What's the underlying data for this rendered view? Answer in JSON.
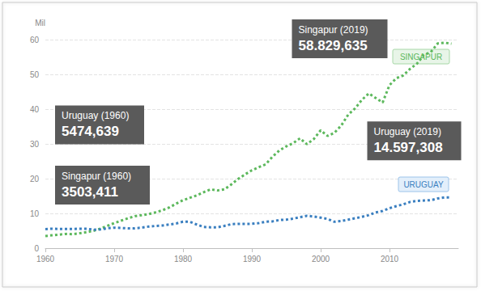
{
  "chart_data": {
    "type": "line",
    "y_label": "Mil",
    "x": [
      1960,
      1961,
      1962,
      1963,
      1964,
      1965,
      1966,
      1967,
      1968,
      1969,
      1970,
      1971,
      1972,
      1973,
      1974,
      1975,
      1976,
      1977,
      1978,
      1979,
      1980,
      1981,
      1982,
      1983,
      1984,
      1985,
      1986,
      1987,
      1988,
      1989,
      1990,
      1991,
      1992,
      1993,
      1994,
      1995,
      1996,
      1997,
      1998,
      1999,
      2000,
      2001,
      2002,
      2003,
      2004,
      2005,
      2006,
      2007,
      2008,
      2009,
      2010,
      2011,
      2012,
      2013,
      2014,
      2015,
      2016,
      2017,
      2018,
      2019
    ],
    "series": [
      {
        "name": "SINGAPUR",
        "color": "#5cb85c",
        "values": [
          3.503411,
          3.7,
          3.9,
          4.1,
          4.0,
          4.3,
          4.6,
          5.0,
          5.6,
          6.4,
          7.2,
          7.9,
          8.6,
          9.2,
          9.5,
          9.8,
          10.3,
          10.9,
          11.7,
          12.8,
          13.8,
          14.5,
          15.2,
          16.1,
          16.9,
          16.6,
          16.9,
          18.3,
          19.9,
          21.2,
          22.4,
          23.3,
          24.1,
          26.3,
          28.1,
          29.3,
          30.2,
          31.6,
          29.9,
          31.4,
          33.9,
          32.3,
          33.2,
          35.3,
          38.4,
          40.2,
          42.7,
          44.5,
          43.2,
          41.9,
          46.9,
          48.9,
          49.7,
          51.6,
          53.1,
          55.6,
          56.4,
          58.9,
          59.1,
          58.829635
        ]
      },
      {
        "name": "URUGUAY",
        "color": "#3a7fc0",
        "values": [
          5.474639,
          5.6,
          5.5,
          5.5,
          5.5,
          5.6,
          5.6,
          5.3,
          5.4,
          5.7,
          5.9,
          5.8,
          5.7,
          5.7,
          5.9,
          6.2,
          6.4,
          6.5,
          6.8,
          7.1,
          7.6,
          7.6,
          6.8,
          6.1,
          6.0,
          6.0,
          6.4,
          6.9,
          7.0,
          7.0,
          7.0,
          7.2,
          7.6,
          7.7,
          8.1,
          8.2,
          8.5,
          8.9,
          9.3,
          9.1,
          8.8,
          8.4,
          7.6,
          7.8,
          8.2,
          8.6,
          9.0,
          9.5,
          10.3,
          10.7,
          11.5,
          12.1,
          12.6,
          13.3,
          13.6,
          13.7,
          13.8,
          14.3,
          14.6,
          14.597308
        ]
      }
    ],
    "xlim": [
      1960,
      2020
    ],
    "xticks": [
      1960,
      1970,
      1980,
      1990,
      2000,
      2010
    ],
    "ylim": [
      0,
      60
    ],
    "yticks": [
      0,
      10,
      20,
      30,
      40,
      50,
      60
    ],
    "grid": true,
    "line_style": "dotted",
    "annotations": [
      {
        "label": "Uruguay (1960)",
        "x": 1960,
        "value": 5.474639,
        "value_label": "5474,639"
      },
      {
        "label": "Singapur (1960)",
        "x": 1960,
        "value": 3.503411,
        "value_label": "3503,411"
      },
      {
        "label": "Singapur (2019)",
        "x": 2019,
        "value": 58.829635,
        "value_label": "58.829,635"
      },
      {
        "label": "Uruguay (2019)",
        "x": 2019,
        "value": 14.597308,
        "value_label": "14.597,308"
      }
    ]
  }
}
